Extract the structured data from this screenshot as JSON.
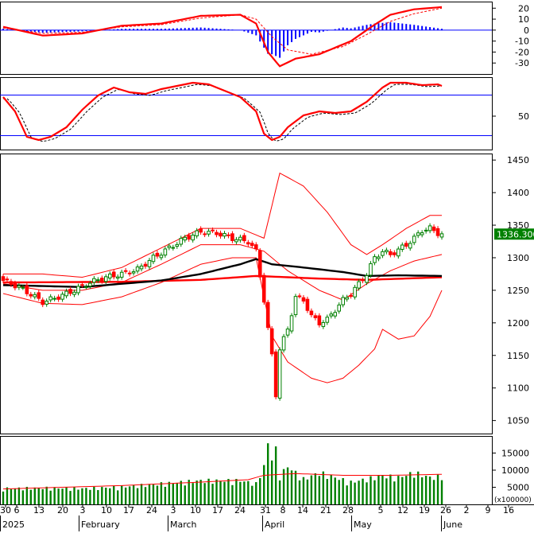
{
  "chart_data": {
    "type": "candlestick",
    "colors": {
      "up": "#008000",
      "down": "#ff0000",
      "bollinger": "#ff0000",
      "ma_long": "#000000",
      "ma_short": "#ff0000",
      "macd_line": "#ff0000",
      "macd_hist": "#0000ff",
      "rsi_line": "#ff0000",
      "rsi_level": "#0000ff",
      "volume_bar": "#008000",
      "grid": "#00a0a0",
      "price_tag_bg": "#008000"
    },
    "x_axis": {
      "day_ticks": [
        "30",
        "6",
        "13",
        "20",
        "3",
        "10",
        "17",
        "24",
        "3",
        "10",
        "17",
        "24",
        "31",
        "8",
        "14",
        "21",
        "28",
        "5",
        "12",
        "19",
        "26",
        "2",
        "9",
        "16"
      ],
      "month_labels": [
        "2025",
        "February",
        "March",
        "April",
        "May",
        "June"
      ]
    },
    "macd": {
      "yticks": [
        "20",
        "10",
        "0",
        "-10",
        "-20",
        "-30"
      ],
      "ylim": [
        -40,
        26
      ]
    },
    "rsi": {
      "yticks": [
        "50"
      ],
      "levels": [
        30,
        70
      ],
      "ylim": [
        0,
        100
      ]
    },
    "price": {
      "yticks": [
        "1450",
        "1400",
        "1350",
        "1300",
        "1250",
        "1200",
        "1150",
        "1100",
        "1050"
      ],
      "ylim": [
        1030,
        1460
      ],
      "last_price_label": "1336.300",
      "last_price": 1336.3
    },
    "volume": {
      "yticks": [
        "15000",
        "10000",
        "5000"
      ],
      "unit_label": "(x100000)",
      "ylim": [
        0,
        20000
      ]
    }
  }
}
